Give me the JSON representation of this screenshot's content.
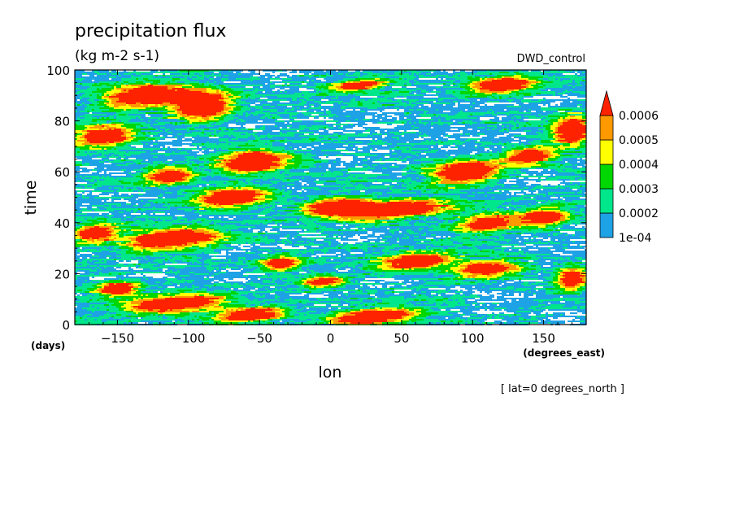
{
  "chart_data": {
    "type": "heatmap",
    "title": "precipitation flux",
    "units": "(kg m-2 s-1)",
    "experiment": "DWD_control",
    "xlabel": "lon",
    "ylabel": "time",
    "x_units": "(degrees_east)",
    "y_units": "(days)",
    "footnote": "[ lat=0 degrees_north ]",
    "xlim": [
      -180,
      180
    ],
    "ylim": [
      0,
      100
    ],
    "x_ticks": [
      -150,
      -100,
      -50,
      0,
      50,
      100,
      150
    ],
    "x_tick_labels": [
      "−150",
      "−100",
      "−50",
      "0",
      "50",
      "100",
      "150"
    ],
    "y_ticks": [
      0,
      20,
      40,
      60,
      80,
      100
    ],
    "y_tick_labels": [
      "0",
      "20",
      "40",
      "60",
      "80",
      "100"
    ],
    "contour_levels": [
      0.0001,
      0.0002,
      0.0003,
      0.0004,
      0.0005,
      0.0006
    ],
    "colorbar_labels": [
      "1e-04",
      "0.0002",
      "0.0003",
      "0.0004",
      "0.0005",
      "0.0006"
    ],
    "colors": [
      "#ffffff",
      "#1ea2e6",
      "#00e68a",
      "#00d600",
      "#ffff00",
      "#ff9900",
      "#ff2200"
    ],
    "grid": false,
    "legend_position": "right",
    "heavy_rain_events": [
      {
        "lon": -130,
        "time": 90,
        "lon_halfwidth": 26,
        "time_halfwidth": 4,
        "peak": 0.00085
      },
      {
        "lon": -90,
        "time": 86,
        "lon_halfwidth": 18,
        "time_halfwidth": 5,
        "peak": 0.0009
      },
      {
        "lon": -160,
        "time": 74,
        "lon_halfwidth": 20,
        "time_halfwidth": 4,
        "peak": 0.0007
      },
      {
        "lon": -55,
        "time": 64,
        "lon_halfwidth": 22,
        "time_halfwidth": 4,
        "peak": 0.0008
      },
      {
        "lon": -115,
        "time": 58,
        "lon_halfwidth": 16,
        "time_halfwidth": 3,
        "peak": 0.0007
      },
      {
        "lon": -70,
        "time": 50,
        "lon_halfwidth": 24,
        "time_halfwidth": 3.5,
        "peak": 0.00075
      },
      {
        "lon": 40,
        "time": 45,
        "lon_halfwidth": 40,
        "time_halfwidth": 3,
        "peak": 0.00085
      },
      {
        "lon": 5,
        "time": 47,
        "lon_halfwidth": 20,
        "time_halfwidth": 2.5,
        "peak": 0.0007
      },
      {
        "lon": -110,
        "time": 34,
        "lon_halfwidth": 28,
        "time_halfwidth": 3.5,
        "peak": 0.0009
      },
      {
        "lon": -165,
        "time": 36,
        "lon_halfwidth": 14,
        "time_halfwidth": 3,
        "peak": 0.0007
      },
      {
        "lon": 60,
        "time": 25,
        "lon_halfwidth": 22,
        "time_halfwidth": 3,
        "peak": 0.00075
      },
      {
        "lon": 110,
        "time": 22,
        "lon_halfwidth": 20,
        "time_halfwidth": 3,
        "peak": 0.0007
      },
      {
        "lon": -35,
        "time": 24,
        "lon_halfwidth": 12,
        "time_halfwidth": 2.5,
        "peak": 0.0007
      },
      {
        "lon": -110,
        "time": 8,
        "lon_halfwidth": 32,
        "time_halfwidth": 3,
        "peak": 0.0008
      },
      {
        "lon": -55,
        "time": 4,
        "lon_halfwidth": 22,
        "time_halfwidth": 2.5,
        "peak": 0.00075
      },
      {
        "lon": 30,
        "time": 3,
        "lon_halfwidth": 28,
        "time_halfwidth": 2.5,
        "peak": 0.0008
      },
      {
        "lon": 120,
        "time": 94,
        "lon_halfwidth": 20,
        "time_halfwidth": 3,
        "peak": 0.00075
      },
      {
        "lon": 95,
        "time": 60,
        "lon_halfwidth": 22,
        "time_halfwidth": 4,
        "peak": 0.0008
      },
      {
        "lon": 140,
        "time": 66,
        "lon_halfwidth": 16,
        "time_halfwidth": 3,
        "peak": 0.0007
      },
      {
        "lon": 170,
        "time": 76,
        "lon_halfwidth": 12,
        "time_halfwidth": 5,
        "peak": 0.0008
      },
      {
        "lon": 150,
        "time": 42,
        "lon_halfwidth": 16,
        "time_halfwidth": 3,
        "peak": 0.0007
      },
      {
        "lon": 170,
        "time": 18,
        "lon_halfwidth": 10,
        "time_halfwidth": 4,
        "peak": 0.0007
      },
      {
        "lon": -5,
        "time": 17,
        "lon_halfwidth": 14,
        "time_halfwidth": 2,
        "peak": 0.00065
      },
      {
        "lon": 20,
        "time": 94,
        "lon_halfwidth": 18,
        "time_halfwidth": 2,
        "peak": 0.00065
      },
      {
        "lon": 110,
        "time": 40,
        "lon_halfwidth": 18,
        "time_halfwidth": 3,
        "peak": 0.0007
      },
      {
        "lon": -150,
        "time": 14,
        "lon_halfwidth": 14,
        "time_halfwidth": 2.5,
        "peak": 0.0007
      }
    ]
  }
}
